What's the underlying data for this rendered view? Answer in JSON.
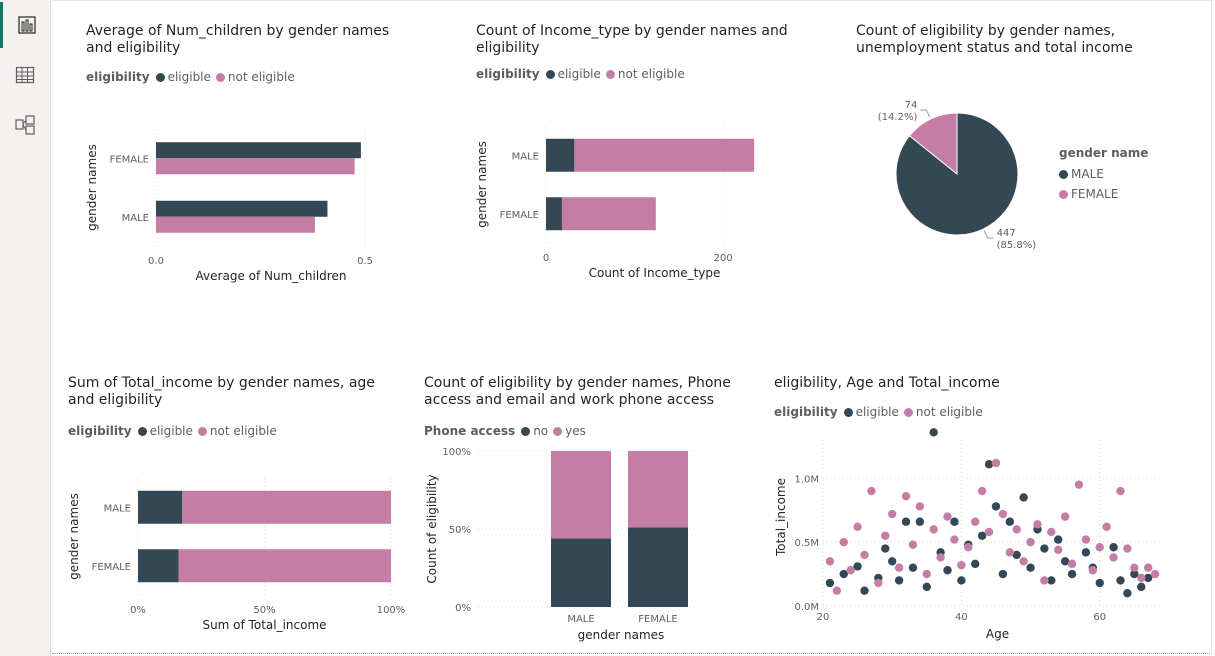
{
  "colors": {
    "eligible": "#344755",
    "not_eligible": "#c47ea6",
    "grid": "#dadada",
    "text": "#605e5c"
  },
  "sidebar": {
    "items": [
      {
        "icon": "report-view-icon",
        "active": true
      },
      {
        "icon": "table-view-icon",
        "active": false
      },
      {
        "icon": "model-view-icon",
        "active": false
      }
    ]
  },
  "chart_data": [
    {
      "id": "avg_children",
      "type": "bar",
      "orientation": "horizontal",
      "title": "Average of Num_children by gender names and eligibility",
      "legend_title": "eligibility",
      "xlabel": "Average of Num_children",
      "ylabel": "gender names",
      "categories": [
        "FEMALE",
        "MALE"
      ],
      "series": [
        {
          "name": "eligible",
          "values": [
            0.49,
            0.41
          ]
        },
        {
          "name": "not eligible",
          "values": [
            0.475,
            0.38
          ]
        }
      ],
      "xlim": [
        0,
        0.55
      ],
      "xticks": [
        0,
        0.5
      ],
      "xtick_labels": [
        "0.0",
        "0.5"
      ]
    },
    {
      "id": "count_income_type",
      "type": "bar",
      "orientation": "horizontal",
      "stacked": true,
      "title": "Count of Income_type by gender names and eligibility",
      "legend_title": "eligibility",
      "xlabel": "Count of Income_type",
      "ylabel": "gender names",
      "categories": [
        "MALE",
        "FEMALE"
      ],
      "series": [
        {
          "name": "eligible",
          "values": [
            32,
            18
          ]
        },
        {
          "name": "not eligible",
          "values": [
            203,
            106
          ]
        }
      ],
      "xlim": [
        0,
        245
      ],
      "xticks": [
        0,
        200
      ],
      "xtick_labels": [
        "0",
        "200"
      ]
    },
    {
      "id": "eligibility_pie",
      "type": "pie",
      "title": "Count of eligibility by gender names, unemployment status and total income",
      "legend_title": "gender name",
      "slices": [
        {
          "name": "MALE",
          "value": 447,
          "label": "447",
          "pct": "(85.8%)"
        },
        {
          "name": "FEMALE",
          "value": 74,
          "label": "74",
          "pct": "(14.2%)"
        }
      ]
    },
    {
      "id": "sum_total_income",
      "type": "bar",
      "orientation": "horizontal",
      "stacked": "100%",
      "title": "Sum of Total_income by gender names, age and eligibility",
      "legend_title": "eligibility",
      "xlabel": "Sum of Total_income",
      "ylabel": "gender names",
      "categories": [
        "MALE",
        "FEMALE"
      ],
      "series": [
        {
          "name": "eligible",
          "values": [
            17.5,
            16
          ]
        },
        {
          "name": "not eligible",
          "values": [
            82.5,
            84
          ]
        }
      ],
      "xlim": [
        0,
        100
      ],
      "xticks": [
        0,
        50,
        100
      ],
      "xtick_labels": [
        "0%",
        "50%",
        "100%"
      ]
    },
    {
      "id": "phone_access",
      "type": "bar",
      "orientation": "vertical",
      "stacked": "100%",
      "title": "Count of eligibility by gender names, Phone access and email and work phone access",
      "legend_title": "Phone access",
      "xlabel": "gender names",
      "ylabel": "Count of eligibility",
      "categories": [
        "MALE",
        "FEMALE"
      ],
      "series": [
        {
          "name": "no",
          "values": [
            44,
            51
          ]
        },
        {
          "name": "yes",
          "values": [
            56,
            49
          ]
        }
      ],
      "ylim": [
        0,
        100
      ],
      "yticks": [
        0,
        50,
        100
      ],
      "ytick_labels": [
        "0%",
        "50%",
        "100%"
      ]
    },
    {
      "id": "age_income_scatter",
      "type": "scatter",
      "title": "eligibility, Age and Total_income",
      "legend_title": "eligibility",
      "xlabel": "Age",
      "ylabel": "Total_income",
      "xlim": [
        20,
        69
      ],
      "ylim": [
        0,
        1.3
      ],
      "xticks": [
        20,
        40,
        60
      ],
      "xtick_labels": [
        "20",
        "40",
        "60"
      ],
      "yticks": [
        0,
        0.5,
        1.0
      ],
      "ytick_labels": [
        "0.0M",
        "0.5M",
        "1.0M"
      ],
      "series": [
        {
          "name": "eligible",
          "points": [
            [
              21,
              0.18
            ],
            [
              23,
              0.25
            ],
            [
              25,
              0.31
            ],
            [
              26,
              0.12
            ],
            [
              28,
              0.22
            ],
            [
              29,
              0.45
            ],
            [
              30,
              0.35
            ],
            [
              31,
              0.2
            ],
            [
              32,
              0.66
            ],
            [
              33,
              0.3
            ],
            [
              34,
              0.66
            ],
            [
              35,
              0.15
            ],
            [
              36,
              1.36
            ],
            [
              37,
              0.42
            ],
            [
              38,
              0.28
            ],
            [
              39,
              0.66
            ],
            [
              40,
              0.2
            ],
            [
              41,
              0.48
            ],
            [
              42,
              0.33
            ],
            [
              43,
              0.55
            ],
            [
              44,
              1.11
            ],
            [
              45,
              0.78
            ],
            [
              46,
              0.25
            ],
            [
              47,
              0.66
            ],
            [
              48,
              0.4
            ],
            [
              49,
              0.85
            ],
            [
              50,
              0.3
            ],
            [
              51,
              0.6
            ],
            [
              52,
              0.45
            ],
            [
              53,
              0.2
            ],
            [
              54,
              0.52
            ],
            [
              55,
              0.35
            ],
            [
              56,
              0.25
            ],
            [
              58,
              0.42
            ],
            [
              59,
              0.3
            ],
            [
              60,
              0.18
            ],
            [
              62,
              0.46
            ],
            [
              63,
              0.2
            ],
            [
              64,
              0.1
            ],
            [
              65,
              0.25
            ],
            [
              66,
              0.15
            ],
            [
              67,
              0.22
            ]
          ]
        },
        {
          "name": "not eligible",
          "points": [
            [
              21,
              0.35
            ],
            [
              22,
              0.12
            ],
            [
              23,
              0.5
            ],
            [
              24,
              0.28
            ],
            [
              25,
              0.62
            ],
            [
              26,
              0.4
            ],
            [
              27,
              0.9
            ],
            [
              28,
              0.18
            ],
            [
              29,
              0.55
            ],
            [
              30,
              0.72
            ],
            [
              31,
              0.3
            ],
            [
              32,
              0.86
            ],
            [
              33,
              0.48
            ],
            [
              34,
              0.78
            ],
            [
              35,
              0.25
            ],
            [
              36,
              0.6
            ],
            [
              37,
              0.38
            ],
            [
              38,
              0.7
            ],
            [
              39,
              0.52
            ],
            [
              40,
              0.32
            ],
            [
              41,
              0.46
            ],
            [
              42,
              0.66
            ],
            [
              43,
              0.9
            ],
            [
              44,
              0.58
            ],
            [
              45,
              1.12
            ],
            [
              46,
              0.72
            ],
            [
              47,
              0.42
            ],
            [
              48,
              0.6
            ],
            [
              49,
              0.35
            ],
            [
              50,
              0.5
            ],
            [
              51,
              0.64
            ],
            [
              52,
              0.2
            ],
            [
              53,
              0.58
            ],
            [
              54,
              0.44
            ],
            [
              55,
              0.7
            ],
            [
              56,
              0.33
            ],
            [
              57,
              0.95
            ],
            [
              58,
              0.52
            ],
            [
              59,
              0.28
            ],
            [
              60,
              0.46
            ],
            [
              61,
              0.62
            ],
            [
              62,
              0.38
            ],
            [
              63,
              0.9
            ],
            [
              64,
              0.45
            ],
            [
              65,
              0.3
            ],
            [
              66,
              0.22
            ],
            [
              67,
              0.3
            ],
            [
              68,
              0.25
            ]
          ]
        }
      ]
    }
  ]
}
